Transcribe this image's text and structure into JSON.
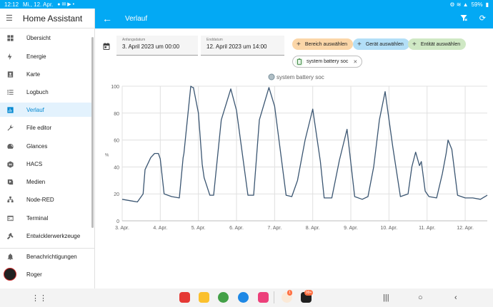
{
  "status_bar": {
    "time": "12:12",
    "date": "Mi., 12. Apr.",
    "battery": "59%"
  },
  "sidebar": {
    "title": "Home Assistant",
    "items": [
      {
        "label": "Übersicht",
        "icon": "grid-icon"
      },
      {
        "label": "Energie",
        "icon": "lightning-icon"
      },
      {
        "label": "Karte",
        "icon": "map-person-icon"
      },
      {
        "label": "Logbuch",
        "icon": "list-icon"
      },
      {
        "label": "Verlauf",
        "icon": "chart-bar-icon",
        "active": true
      },
      {
        "label": "File editor",
        "icon": "wrench-icon"
      },
      {
        "label": "Glances",
        "icon": "gauge-icon"
      },
      {
        "label": "HACS",
        "icon": "hacs-icon"
      },
      {
        "label": "Medien",
        "icon": "play-box-icon"
      },
      {
        "label": "Node-RED",
        "icon": "sitemap-icon"
      },
      {
        "label": "Terminal",
        "icon": "console-icon"
      },
      {
        "label": "Entwicklerwerkzeuge",
        "icon": "hammer-icon"
      }
    ],
    "notifications_label": "Benachrichtigungen",
    "user_label": "Roger"
  },
  "appbar": {
    "title": "Verlauf"
  },
  "date_range": {
    "start_label": "Anfangsdatum",
    "start_value": "3. April 2023 um 00:00",
    "end_label": "Enddatum",
    "end_value": "12. April 2023 um 14:00"
  },
  "chips": {
    "area": "Bereich auswählen",
    "device": "Gerät auswählen",
    "entity": "Entität auswählen",
    "selected_entity": "system battery soc"
  },
  "colors": {
    "accent": "#03a9f4",
    "line": "#3b5672"
  },
  "chart_data": {
    "type": "line",
    "legend": "system battery soc",
    "legend_position": "top-center",
    "ylabel": "%",
    "ylim": [
      0,
      100
    ],
    "yticks": [
      "0",
      "20",
      "40",
      "60",
      "80",
      "100"
    ],
    "xlim": [
      0,
      9.58
    ],
    "xticks": [
      "3. Apr.",
      "4. Apr.",
      "5. Apr.",
      "6. Apr.",
      "7. Apr.",
      "8. Apr.",
      "9. Apr.",
      "10. Apr.",
      "11. Apr.",
      "12. Apr."
    ],
    "grid": true,
    "series": [
      {
        "name": "system battery soc",
        "x": [
          0.0,
          0.2,
          0.4,
          0.55,
          0.6,
          0.75,
          0.85,
          0.95,
          1.0,
          1.1,
          1.2,
          1.3,
          1.5,
          1.6,
          1.62,
          1.8,
          1.85,
          1.87,
          2.0,
          2.1,
          2.15,
          2.3,
          2.4,
          2.6,
          2.85,
          3.0,
          3.3,
          3.45,
          3.6,
          3.85,
          4.0,
          4.3,
          4.45,
          4.6,
          4.8,
          5.0,
          5.2,
          5.3,
          5.5,
          5.7,
          5.9,
          6.1,
          6.3,
          6.45,
          6.6,
          6.75,
          6.9,
          7.1,
          7.3,
          7.5,
          7.6,
          7.7,
          7.8,
          7.85,
          7.95,
          8.05,
          8.25,
          8.4,
          8.5,
          8.55,
          8.65,
          8.8,
          9.0,
          9.2,
          9.4,
          9.58
        ],
        "y": [
          16,
          15,
          14,
          20,
          38,
          47,
          50,
          50,
          46,
          20,
          19,
          18,
          17,
          47,
          50,
          100,
          99,
          99,
          80,
          42,
          32,
          19,
          19,
          75,
          98,
          82,
          19,
          19,
          75,
          99,
          85,
          19,
          18,
          30,
          60,
          83,
          44,
          17,
          17,
          45,
          68,
          18,
          16,
          18,
          40,
          75,
          96,
          55,
          18,
          20,
          40,
          51,
          41,
          44,
          22,
          18,
          17,
          35,
          50,
          60,
          53,
          19,
          17,
          17,
          16,
          19
        ]
      }
    ]
  }
}
